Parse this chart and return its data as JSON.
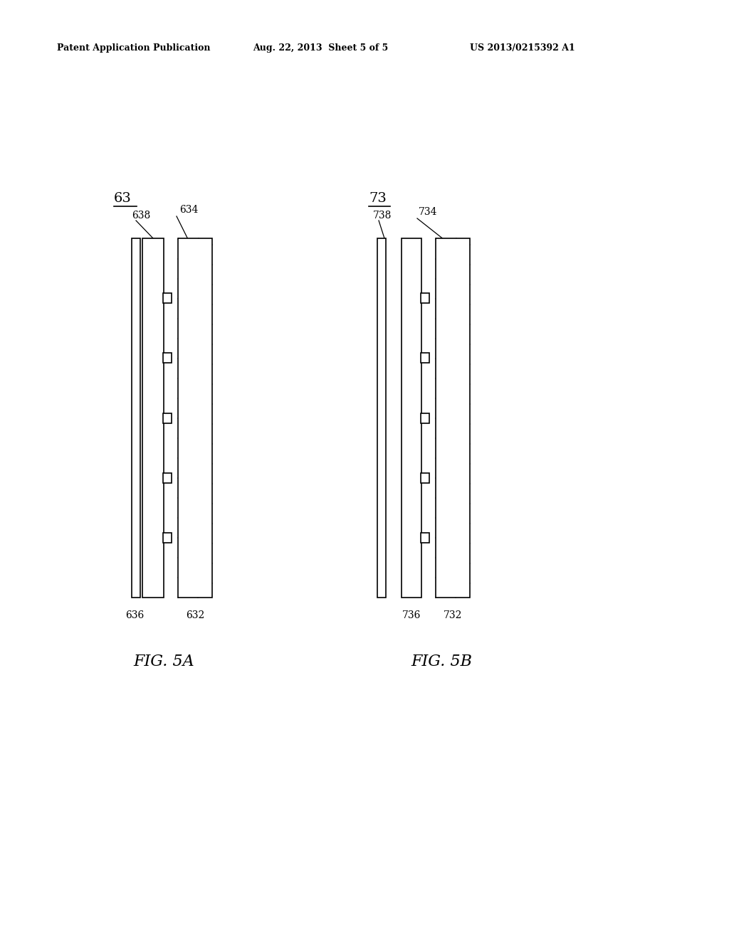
{
  "bg_color": "#ffffff",
  "header_text": "Patent Application Publication",
  "header_date": "Aug. 22, 2013  Sheet 5 of 5",
  "header_patent": "US 2013/0215392 A1",
  "fig5a_label": "FIG. 5A",
  "fig5b_label": "FIG. 5B",
  "fig5a_ref": "63",
  "fig5b_ref": "73",
  "lw": 1.2
}
